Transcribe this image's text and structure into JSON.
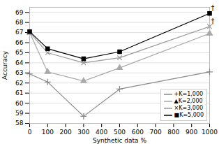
{
  "chart_data": {
    "type": "line",
    "x": [
      0,
      100,
      300,
      500,
      1000
    ],
    "series": [
      {
        "name": "+K=1,000",
        "color": "#888888",
        "marker": "plus",
        "values": [
          62.9,
          62.1,
          58.7,
          61.4,
          63.1
        ]
      },
      {
        "name": "▲K=2,000",
        "color": "#aaaaaa",
        "marker": "triangle",
        "values": [
          67.0,
          63.1,
          62.2,
          63.5,
          66.9
        ]
      },
      {
        "name": "×K=3,000",
        "color": "#999999",
        "marker": "x",
        "values": [
          67.0,
          65.0,
          64.0,
          64.5,
          67.6
        ]
      },
      {
        "name": "■K=5,000",
        "color": "#000000",
        "marker": "square",
        "values": [
          67.1,
          65.4,
          64.4,
          65.1,
          68.9
        ]
      }
    ],
    "xlabel": "Synthetic data %",
    "ylabel": "Accuracy",
    "xlim": [
      0,
      1000
    ],
    "xticks": [
      0,
      100,
      200,
      300,
      400,
      500,
      600,
      700,
      800,
      900,
      1000
    ],
    "ylim": [
      58,
      69.5
    ],
    "yticks": [
      58,
      59,
      60,
      61,
      62,
      63,
      64,
      65,
      66,
      67,
      68,
      69
    ],
    "annotations": [
      {
        "text": "†",
        "x": 1000,
        "y": 68.9
      },
      {
        "text": "†",
        "x": 1000,
        "y": 67.6
      }
    ],
    "grid": true,
    "legend": "lower right"
  }
}
